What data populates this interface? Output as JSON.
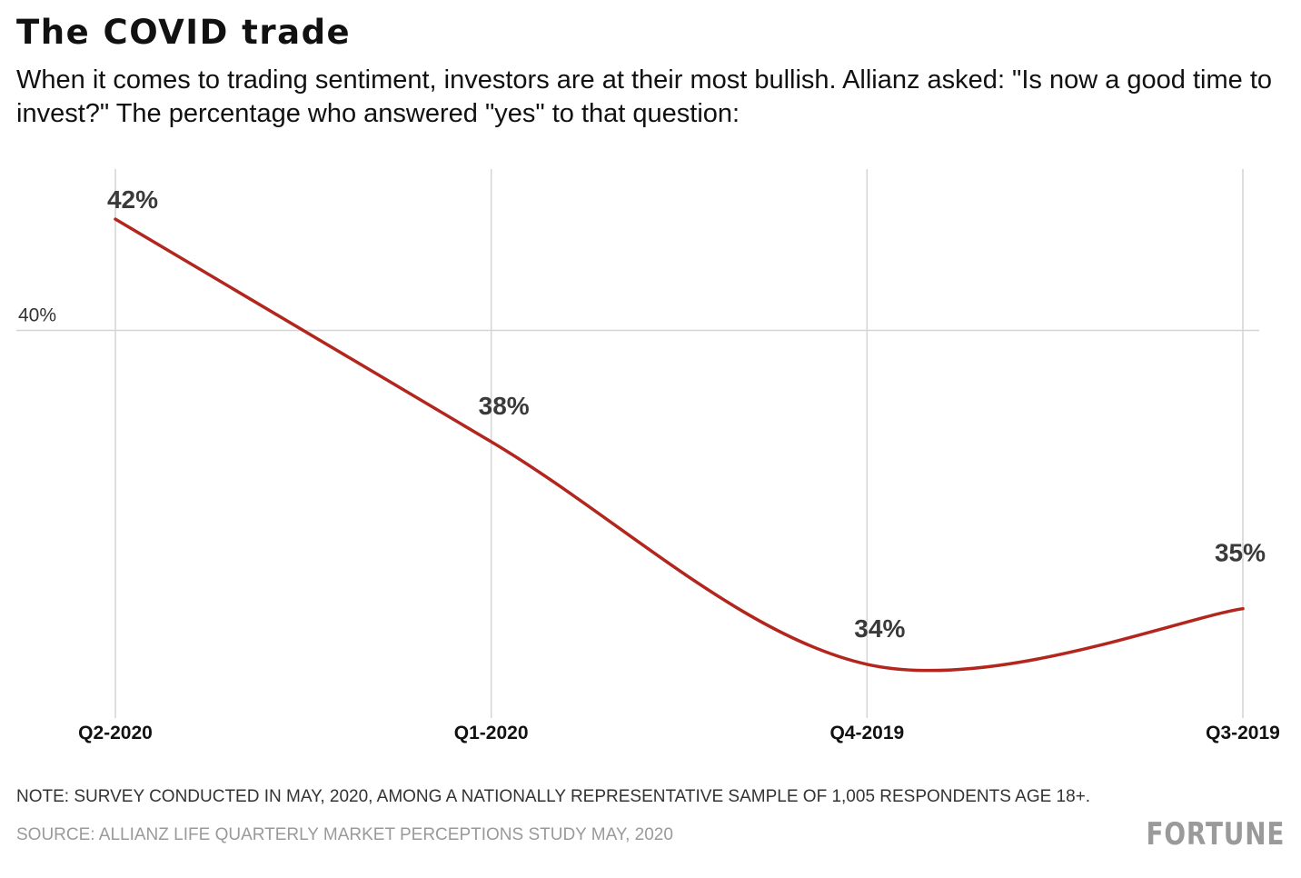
{
  "header": {
    "title": "The COVID trade",
    "subtitle": "When it comes to trading sentiment, investors are at their most bullish. Allianz asked: \"Is now a good time to invest?\" The percentage who answered \"yes\" to that question:"
  },
  "footer": {
    "note": "NOTE: SURVEY CONDUCTED IN MAY, 2020, AMONG A NATIONALLY REPRESENTATIVE SAMPLE OF 1,005 RESPONDENTS AGE 18+.",
    "source": "SOURCE: ALLIANZ LIFE QUARTERLY MARKET PERCEPTIONS STUDY MAY, 2020",
    "logo": "FORTUNE"
  },
  "colors": {
    "line": "#b3261e",
    "grid": "#d4d4d4",
    "data_label": "#3a3a3a"
  },
  "chart_data": {
    "type": "line",
    "categories": [
      "Q2-2020",
      "Q1-2020",
      "Q4-2019",
      "Q3-2019"
    ],
    "values": [
      42,
      38,
      34,
      35
    ],
    "data_labels": [
      "42%",
      "38%",
      "34%",
      "35%"
    ],
    "y_tick_values": [
      40
    ],
    "y_tick_labels": [
      "40%"
    ],
    "ylim": [
      33.1,
      42.9
    ],
    "smooth": true,
    "grid": true,
    "legend": "none"
  }
}
